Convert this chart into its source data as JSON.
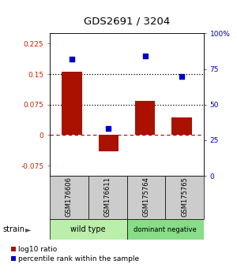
{
  "title": "GDS2691 / 3204",
  "samples": [
    "GSM176606",
    "GSM176611",
    "GSM175764",
    "GSM175765"
  ],
  "log10_ratio": [
    0.155,
    -0.04,
    0.085,
    0.043
  ],
  "percentile_rank": [
    0.82,
    0.33,
    0.84,
    0.7
  ],
  "groups": [
    {
      "label": "wild type",
      "color": "#aaeaaa",
      "samples": [
        0,
        1
      ]
    },
    {
      "label": "dominant negative",
      "color": "#88dd88",
      "samples": [
        2,
        3
      ]
    }
  ],
  "bar_color": "#aa1100",
  "dot_color": "#0000cc",
  "ylim_left": [
    -0.1,
    0.25
  ],
  "ylim_right": [
    0.0,
    1.0
  ],
  "yticks_left": [
    -0.075,
    0.0,
    0.075,
    0.15,
    0.225
  ],
  "ytick_labels_left": [
    "-0.075",
    "0",
    "0.075",
    "0.15",
    "0.225"
  ],
  "yticks_right": [
    0.0,
    0.25,
    0.5,
    0.75,
    1.0
  ],
  "ytick_labels_right": [
    "0",
    "25",
    "50",
    "75",
    "100%"
  ],
  "hlines": [
    0.075,
    0.15
  ],
  "hline_zero": 0.0,
  "bg_plot": "#ffffff",
  "bg_fig": "#ffffff",
  "sample_box_color": "#cccccc",
  "group1_color": "#bbeeaa",
  "group2_color": "#88dd88"
}
